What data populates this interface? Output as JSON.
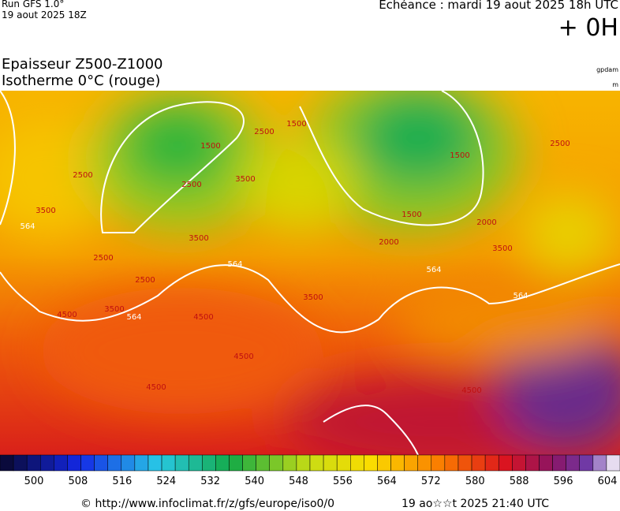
{
  "header": {
    "run": "Run GFS 1.0°",
    "run_date": "19 aout 2025 18Z",
    "echeance": "Echéance : mardi 19 aout 2025 18h UTC",
    "offset": "+ 0H",
    "title_line1": "Epaisseur Z500-Z1000",
    "title_line2": "Isotherme 0°C (rouge)",
    "unit1": "gpdam",
    "unit2": "m"
  },
  "map": {
    "contour_labels": [
      "564",
      "564",
      "564",
      "564",
      "564",
      "2500",
      "2500",
      "2500",
      "2500",
      "2500",
      "3500",
      "3500",
      "3500",
      "3500",
      "3500",
      "3500",
      "1500",
      "1500",
      "1500",
      "1500",
      "4500",
      "4500",
      "4500",
      "4500",
      "4500",
      "2000",
      "2000",
      "2500"
    ]
  },
  "colorbar": {
    "labels": [
      "500",
      "508",
      "516",
      "524",
      "532",
      "540",
      "548",
      "556",
      "564",
      "572",
      "580",
      "588",
      "596",
      "604"
    ]
  },
  "footer": {
    "url": "© http://www.infoclimat.fr/z/gfs/europe/iso0/0",
    "generated": "19 ao☆☆t 2025 21:40 UTC"
  }
}
